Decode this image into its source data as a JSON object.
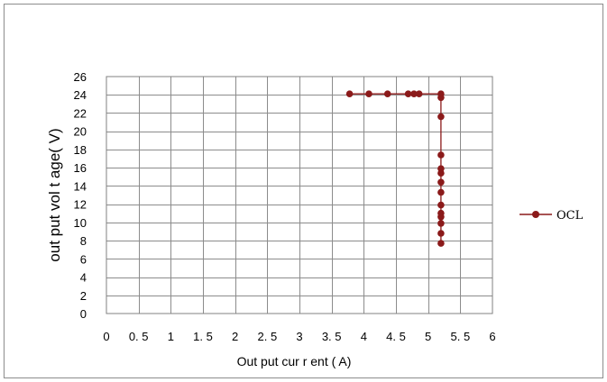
{
  "chart_data": {
    "type": "line",
    "title": "",
    "xlabel": "Out put   cur r ent ( A)",
    "ylabel": "out put   vol t age( V)",
    "xlim": [
      0,
      6
    ],
    "ylim": [
      0,
      26
    ],
    "x_ticks": [
      "0",
      "0. 5",
      "1",
      "1. 5",
      "2",
      "2. 5",
      "3",
      "3. 5",
      "4",
      "4. 5",
      "5",
      "5. 5",
      "6"
    ],
    "y_ticks": [
      "0",
      "2",
      "4",
      "6",
      "8",
      "10",
      "12",
      "14",
      "16",
      "18",
      "20",
      "22",
      "24",
      "26"
    ],
    "grid": true,
    "legend_position": "right",
    "series": [
      {
        "name": "OCL",
        "color": "#8b1a1a",
        "marker": "circle",
        "points": [
          {
            "x": 3.78,
            "y": 24.1
          },
          {
            "x": 4.08,
            "y": 24.1
          },
          {
            "x": 4.37,
            "y": 24.1
          },
          {
            "x": 4.69,
            "y": 24.1
          },
          {
            "x": 4.78,
            "y": 24.1
          },
          {
            "x": 4.86,
            "y": 24.1
          },
          {
            "x": 5.2,
            "y": 24.1
          },
          {
            "x": 5.2,
            "y": 23.7
          },
          {
            "x": 5.2,
            "y": 21.6
          },
          {
            "x": 5.2,
            "y": 17.4
          },
          {
            "x": 5.2,
            "y": 15.9
          },
          {
            "x": 5.2,
            "y": 15.4
          },
          {
            "x": 5.2,
            "y": 14.4
          },
          {
            "x": 5.2,
            "y": 13.3
          },
          {
            "x": 5.2,
            "y": 11.9
          },
          {
            "x": 5.2,
            "y": 11.0
          },
          {
            "x": 5.2,
            "y": 10.6
          },
          {
            "x": 5.2,
            "y": 9.9
          },
          {
            "x": 5.2,
            "y": 8.8
          },
          {
            "x": 5.2,
            "y": 7.7
          }
        ]
      }
    ]
  }
}
